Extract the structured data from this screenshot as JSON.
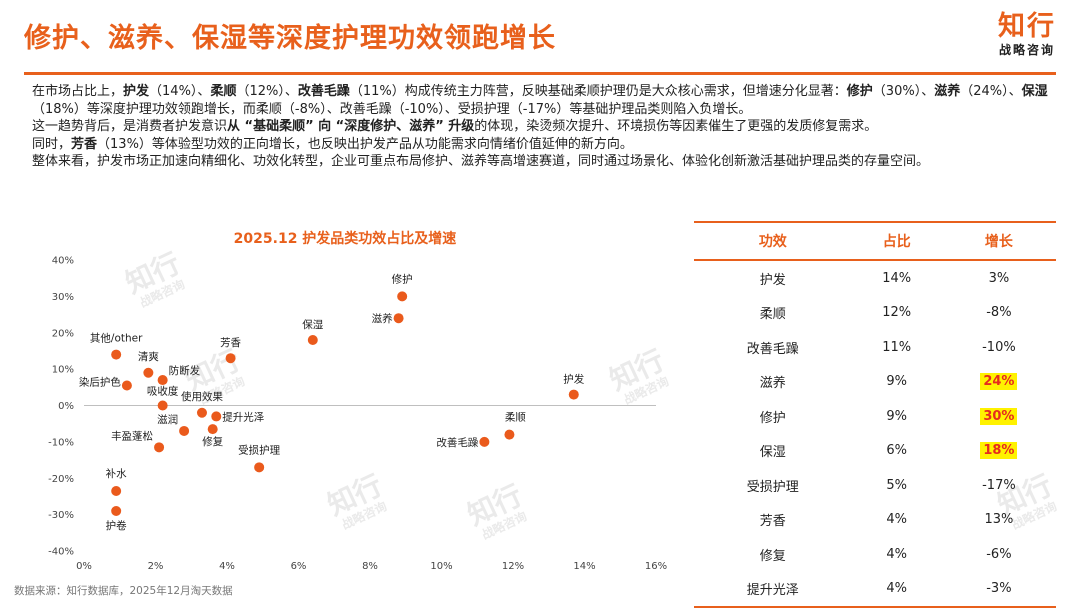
{
  "header": {
    "title": "修护、滋养、保湿等深度护理功效领跑增长",
    "logo_main": "知行",
    "logo_sub": "战略咨询"
  },
  "intro": {
    "p1": [
      {
        "t": "在市场占比上，"
      },
      {
        "t": "护发",
        "b": true
      },
      {
        "t": "（14%）、"
      },
      {
        "t": "柔顺",
        "b": true
      },
      {
        "t": "（12%）、"
      },
      {
        "t": "改善毛躁",
        "b": true
      },
      {
        "t": "（11%）构成传统主力阵营，反映基础柔顺护理仍是大众核心需求，但增速分化显著："
      },
      {
        "t": "修护",
        "b": true
      },
      {
        "t": "（30%）、"
      },
      {
        "t": "滋养",
        "b": true
      },
      {
        "t": "（24%）、"
      },
      {
        "t": "保湿",
        "b": true
      },
      {
        "t": "（18%）等深度护理功效领跑增长，而柔顺（-8%）、改善毛躁（-10%）、受损护理（-17%）等基础护理品类则陷入负增长。"
      }
    ],
    "p2": [
      {
        "t": "这一趋势背后，是消费者护发意识"
      },
      {
        "t": "从 “基础柔顺” 向 “深度修护、滋养” 升级",
        "b": true
      },
      {
        "t": "的体现，染烫频次提升、环境损伤等因素催生了更强的发质修复需求。"
      }
    ],
    "p3": [
      {
        "t": "同时，"
      },
      {
        "t": "芳香",
        "b": true
      },
      {
        "t": "（13%）等体验型功效的正向增长，也反映出护发产品从功能需求向情绪价值延伸的新方向。"
      }
    ],
    "p4": [
      {
        "t": "整体来看，护发市场正加速向精细化、功效化转型，企业可重点布局修护、滋养等高增速赛道，同时通过场景化、体验化创新激活基础护理品类的存量空间。"
      }
    ]
  },
  "chart_data": {
    "type": "scatter",
    "title": "2025.12 护发品类功效占比及增速",
    "xlabel": "",
    "ylabel": "",
    "xlim": [
      0,
      0.16
    ],
    "ylim": [
      -0.4,
      0.4
    ],
    "x_ticks": [
      "0%",
      "2%",
      "4%",
      "6%",
      "8%",
      "10%",
      "12%",
      "14%",
      "16%"
    ],
    "y_ticks": [
      "40%",
      "30%",
      "20%",
      "10%",
      "0%",
      "-10%",
      "-20%",
      "-30%",
      "-40%"
    ],
    "marker_color": "#ea5a1c",
    "points": [
      {
        "label": "护发",
        "x": 0.137,
        "y": 0.03
      },
      {
        "label": "柔顺",
        "x": 0.119,
        "y": -0.08
      },
      {
        "label": "改善毛躁",
        "x": 0.112,
        "y": -0.1
      },
      {
        "label": "修护",
        "x": 0.089,
        "y": 0.3
      },
      {
        "label": "滋养",
        "x": 0.088,
        "y": 0.24
      },
      {
        "label": "保湿",
        "x": 0.064,
        "y": 0.18
      },
      {
        "label": "受损护理",
        "x": 0.049,
        "y": -0.17
      },
      {
        "label": "芳香",
        "x": 0.041,
        "y": 0.13
      },
      {
        "label": "提升光泽",
        "x": 0.037,
        "y": -0.03
      },
      {
        "label": "修复",
        "x": 0.036,
        "y": -0.065
      },
      {
        "label": "使用效果",
        "x": 0.033,
        "y": -0.02
      },
      {
        "label": "滋润",
        "x": 0.028,
        "y": -0.07
      },
      {
        "label": "吸收度",
        "x": 0.022,
        "y": 0.0
      },
      {
        "label": "丰盈蓬松",
        "x": 0.021,
        "y": -0.115
      },
      {
        "label": "防断发",
        "x": 0.022,
        "y": 0.07
      },
      {
        "label": "清爽",
        "x": 0.018,
        "y": 0.09
      },
      {
        "label": "染后护色",
        "x": 0.012,
        "y": 0.055
      },
      {
        "label": "其他/other",
        "x": 0.009,
        "y": 0.14
      },
      {
        "label": "补水",
        "x": 0.009,
        "y": -0.235
      },
      {
        "label": "护卷",
        "x": 0.009,
        "y": -0.29
      }
    ]
  },
  "table": {
    "headers": [
      "功效",
      "占比",
      "增长"
    ],
    "rows": [
      {
        "name": "护发",
        "share": "14%",
        "growth": "3%",
        "highlight": false
      },
      {
        "name": "柔顺",
        "share": "12%",
        "growth": "-8%",
        "highlight": false
      },
      {
        "name": "改善毛躁",
        "share": "11%",
        "growth": "-10%",
        "highlight": false
      },
      {
        "name": "滋养",
        "share": "9%",
        "growth": "24%",
        "highlight": true
      },
      {
        "name": "修护",
        "share": "9%",
        "growth": "30%",
        "highlight": true
      },
      {
        "name": "保湿",
        "share": "6%",
        "growth": "18%",
        "highlight": true
      },
      {
        "name": "受损护理",
        "share": "5%",
        "growth": "-17%",
        "highlight": false
      },
      {
        "name": "芳香",
        "share": "4%",
        "growth": "13%",
        "highlight": false
      },
      {
        "name": "修复",
        "share": "4%",
        "growth": "-6%",
        "highlight": false
      },
      {
        "name": "提升光泽",
        "share": "4%",
        "growth": "-3%",
        "highlight": false
      }
    ]
  },
  "footer": {
    "source": "数据来源：知行数据库，2025年12月淘天数据"
  },
  "colors": {
    "accent": "#e8601c",
    "highlight_bg": "#fff200",
    "highlight_text": "#e62b1e"
  }
}
